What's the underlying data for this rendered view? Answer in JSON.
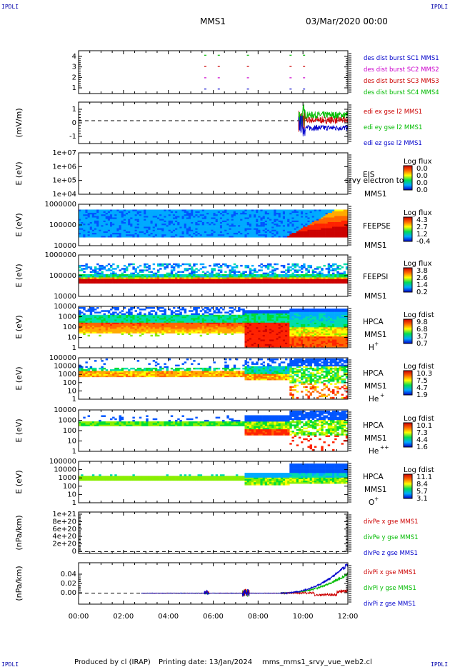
{
  "header": {
    "corner_left_top": "IPDLI",
    "corner_right_top": "IPDLI",
    "mission": "MMS1",
    "date": "03/Mar/2020 00:00",
    "corner_left_bottom": "IPDLI",
    "corner_right_bottom": "IPDLI"
  },
  "footer": {
    "produced": "Produced by cl (IRAP)",
    "printing": "Printing date: 13/Jan/2024",
    "file": "mms_mms1_srvy_vue_web2.cl"
  },
  "chart_data": {
    "type": "stack",
    "x_ticks": [
      "00:00",
      "02:00",
      "04:00",
      "06:00",
      "08:00",
      "10:00",
      "12:00"
    ],
    "x_range_hours": [
      0,
      12
    ],
    "panels": [
      {
        "type": "scatter",
        "ylabel": "",
        "y_ticks": [
          "1",
          "2",
          "3",
          "4"
        ],
        "ylim": [
          0.6,
          4.4
        ],
        "legend": [
          {
            "text": "des dist burst SC1 MMS1",
            "color": "#0000cc"
          },
          {
            "text": "des dist burst SC2 MMS2",
            "color": "#cc00cc"
          },
          {
            "text": "des dist burst SC3 MMS3",
            "color": "#cc0000"
          },
          {
            "text": "des dist burst SC4 MMS4",
            "color": "#00bb00"
          }
        ],
        "burst_times_hours": [
          5.6,
          6.2,
          7.5,
          9.4,
          10.0
        ],
        "series_levels": [
          1,
          2,
          3,
          4
        ]
      },
      {
        "type": "line",
        "ylabel": "(mV/m)",
        "y_ticks": [
          "-1",
          "0",
          "1"
        ],
        "ylim": [
          -1.6,
          1.3
        ],
        "legend": [
          {
            "text": "edi ex gse l2 MMS1",
            "color": "#cc0000"
          },
          {
            "text": "edi ey gse l2 MMS1",
            "color": "#00bb00"
          },
          {
            "text": "edi ez gse l2 MMS1",
            "color": "#0000cc"
          }
        ],
        "data_start_hours": 9.8,
        "ey_mean": 0.4,
        "ez_mean": -0.5,
        "ex_mean": 0.05
      },
      {
        "type": "heatmap",
        "ylabel": "E (eV)",
        "y_ticks": [
          "1e+04",
          "1e+05",
          "1e+06",
          "1e+07"
        ],
        "instrument": [
          "EIS",
          "MMS1"
        ],
        "overlay_text": "srvy electron to",
        "colorbar": {
          "title": "Log flux",
          "ticks": [
            "0.0",
            "0.0",
            "0.0",
            "0.0"
          ]
        },
        "empty": true
      },
      {
        "type": "heatmap",
        "ylabel": "E (eV)",
        "y_ticks": [
          "10000",
          "100000",
          "1000000"
        ],
        "instrument": [
          "FEEPSE",
          "MMS1"
        ],
        "colorbar": {
          "title": "Log flux",
          "ticks": [
            "4.3",
            "2.7",
            "1.2",
            "-0.4"
          ]
        }
      },
      {
        "type": "heatmap",
        "ylabel": "E (eV)",
        "y_ticks": [
          "10000",
          "100000",
          "1000000"
        ],
        "instrument": [
          "FEEPSI",
          "MMS1"
        ],
        "colorbar": {
          "title": "Log flux",
          "ticks": [
            "3.8",
            "2.6",
            "1.4",
            "0.2"
          ]
        }
      },
      {
        "type": "heatmap",
        "ylabel": "E (eV)",
        "y_ticks": [
          "1",
          "10",
          "100",
          "1000",
          "10000"
        ],
        "instrument": [
          "HPCA",
          "MMS1"
        ],
        "species": "H",
        "charge": "+",
        "colorbar": {
          "title": "Log fdist",
          "ticks": [
            "9.8",
            "6.8",
            "3.7",
            "0.7"
          ]
        }
      },
      {
        "type": "heatmap",
        "ylabel": "E (eV)",
        "y_ticks": [
          "1",
          "10",
          "100",
          "1000",
          "10000",
          "100000"
        ],
        "instrument": [
          "HPCA",
          "MMS1"
        ],
        "species": "He",
        "charge": "+",
        "colorbar": {
          "title": "Log fdist",
          "ticks": [
            "10.3",
            "7.5",
            "4.7",
            "1.9"
          ]
        }
      },
      {
        "type": "heatmap",
        "ylabel": "E (eV)",
        "y_ticks": [
          "1",
          "10",
          "100",
          "1000",
          "10000"
        ],
        "instrument": [
          "HPCA",
          "MMS1"
        ],
        "species": "He",
        "charge": "++",
        "colorbar": {
          "title": "Log fdist",
          "ticks": [
            "10.1",
            "7.3",
            "4.4",
            "1.6"
          ]
        }
      },
      {
        "type": "heatmap",
        "ylabel": "E (eV)",
        "y_ticks": [
          "1",
          "10",
          "100",
          "1000",
          "10000",
          "100000"
        ],
        "instrument": [
          "HPCA",
          "MMS1"
        ],
        "species": "O",
        "charge": "+",
        "colorbar": {
          "title": "Log fdist",
          "ticks": [
            "11.1",
            "8.4",
            "5.7",
            "3.1"
          ]
        }
      },
      {
        "type": "line",
        "ylabel": "(nPa/km)",
        "y_ticks": [
          "0",
          "2e+20",
          "4e+20",
          "6e+20",
          "8e+20",
          "1e+21"
        ],
        "ylim": [
          -0.05,
          1.05
        ],
        "legend": [
          {
            "text": "divPe x gse MMS1",
            "color": "#cc0000"
          },
          {
            "text": "divPe y gse MMS1",
            "color": "#00bb00"
          },
          {
            "text": "divPe z gse MMS1",
            "color": "#0000cc"
          }
        ],
        "zero_line": true
      },
      {
        "type": "line",
        "ylabel": "(nPa/km)",
        "y_ticks": [
          "0.00",
          "0.02",
          "0.04"
        ],
        "ylim": [
          -0.017,
          0.047
        ],
        "legend": [
          {
            "text": "divPi x gse MMS1",
            "color": "#cc0000"
          },
          {
            "text": "divPi y gse MMS1",
            "color": "#00bb00"
          },
          {
            "text": "divPi z gse MMS1",
            "color": "#0000cc"
          }
        ],
        "data_start_hours": 2.8,
        "final_values": {
          "x": 0.003,
          "y": 0.03,
          "z": 0.045
        }
      }
    ]
  }
}
